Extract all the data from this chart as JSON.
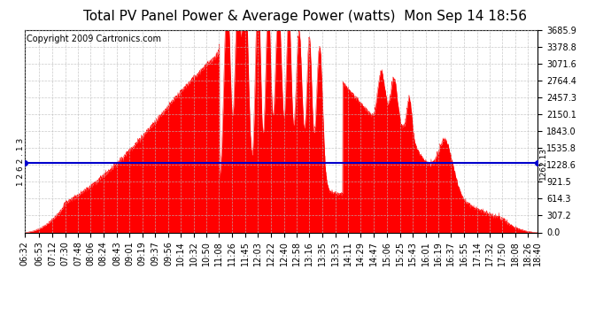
{
  "title": "Total PV Panel Power & Average Power (watts)  Mon Sep 14 18:56",
  "copyright": "Copyright 2009 Cartronics.com",
  "average_value": 1262.13,
  "y_max": 3685.9,
  "y_min": 0.0,
  "y_ticks": [
    0.0,
    307.2,
    614.3,
    921.5,
    1228.6,
    1535.8,
    1843.0,
    2150.1,
    2457.3,
    2764.4,
    3071.6,
    3378.8,
    3685.9
  ],
  "fill_color": "#FF0000",
  "avg_line_color": "#0000CC",
  "grid_color": "#BBBBBB",
  "background_color": "#FFFFFF",
  "title_fontsize": 11,
  "copyright_fontsize": 7,
  "tick_fontsize": 7,
  "avg_label_fontsize": 6.5,
  "x_tick_labels": [
    "06:32",
    "06:53",
    "07:12",
    "07:30",
    "07:48",
    "08:06",
    "08:24",
    "08:43",
    "09:01",
    "09:19",
    "09:37",
    "09:56",
    "10:14",
    "10:32",
    "10:50",
    "11:08",
    "11:26",
    "11:45",
    "12:03",
    "12:22",
    "12:40",
    "12:58",
    "13:16",
    "13:35",
    "13:53",
    "14:11",
    "14:29",
    "14:47",
    "15:06",
    "15:25",
    "15:43",
    "16:01",
    "16:19",
    "16:37",
    "16:55",
    "17:14",
    "17:32",
    "17:50",
    "18:08",
    "18:26",
    "18:40"
  ]
}
